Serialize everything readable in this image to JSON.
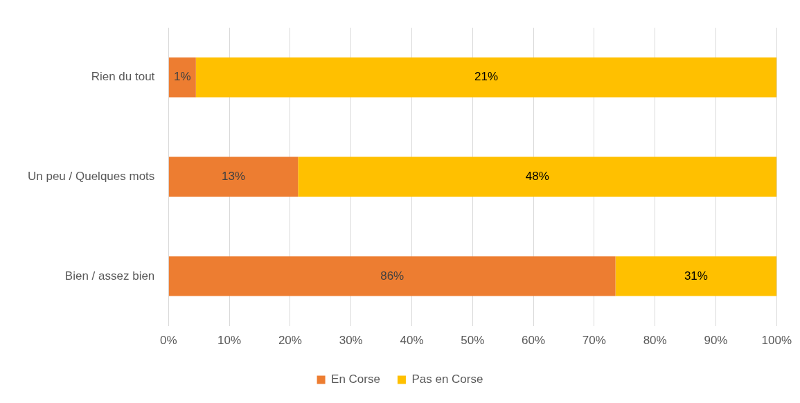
{
  "chart_data": {
    "type": "bar",
    "orientation": "horizontal",
    "stacked": true,
    "categories": [
      "Rien du tout",
      "Un peu / Quelques mots",
      "Bien / assez bien"
    ],
    "series": [
      {
        "name": "En Corse",
        "color": "#ed7d31",
        "values": [
          4.5,
          21.3,
          73.5
        ]
      },
      {
        "name": "Pas en Corse",
        "color": "#ffc000",
        "values": [
          95.5,
          78.7,
          26.5
        ]
      }
    ],
    "annotations": [
      "1%",
      "21%",
      "13%",
      "48%",
      "86%",
      "31%"
    ],
    "xlim": [
      0,
      100
    ],
    "xticks": [
      {
        "value": 0,
        "label": "0%"
      },
      {
        "value": 10,
        "label": "10%"
      },
      {
        "value": 20,
        "label": "20%"
      },
      {
        "value": 30,
        "label": "30%"
      },
      {
        "value": 40,
        "label": "40%"
      },
      {
        "value": 50,
        "label": "50%"
      },
      {
        "value": 60,
        "label": "60%"
      },
      {
        "value": 70,
        "label": "70%"
      },
      {
        "value": 80,
        "label": "80%"
      },
      {
        "value": 90,
        "label": "90%"
      },
      {
        "value": 100,
        "label": "100%"
      }
    ],
    "grid": "x",
    "legend": "bottom"
  }
}
